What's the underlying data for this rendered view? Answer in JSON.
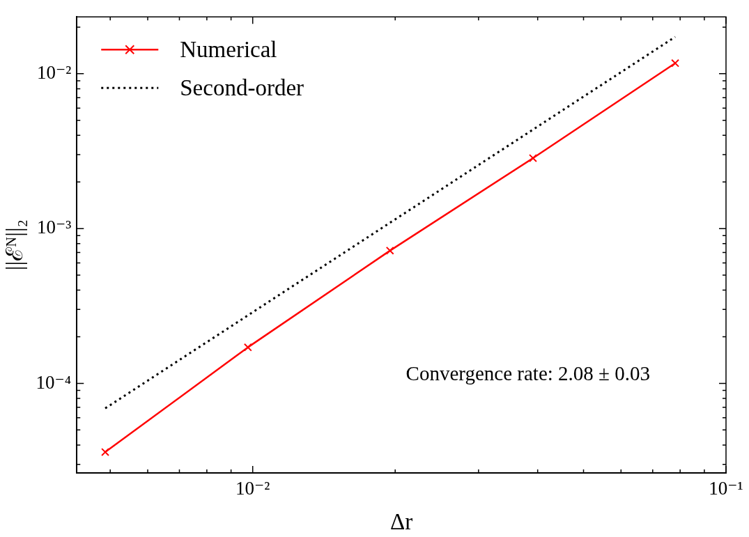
{
  "chart_data": {
    "type": "line",
    "xlabel": "Δr",
    "ylabel": "||ℰᴺ||₂",
    "log": "xy",
    "grid": false,
    "legend": "top left",
    "x": [
      0.00488,
      0.00977,
      0.0195,
      0.0391,
      0.0781
    ],
    "series": [
      {
        "name": "Numerical",
        "color": "#ff0000",
        "marker": "cross",
        "line_style": "solid",
        "values": [
          3.6e-05,
          0.000171,
          0.00072,
          0.00285,
          0.0117
        ]
      },
      {
        "name": "Second-order",
        "color": "#000000",
        "marker": "none",
        "line_style": "dotted",
        "x": [
          0.00488,
          0.0781
        ],
        "values": [
          6.9e-05,
          0.0173
        ]
      }
    ],
    "xlim": [
      0.00425,
      0.1
    ],
    "xticks": [
      {
        "value": 0.005,
        "label": null
      },
      {
        "value": 0.006,
        "label": null
      },
      {
        "value": 0.007,
        "label": null
      },
      {
        "value": 0.008,
        "label": null
      },
      {
        "value": 0.009,
        "label": null
      },
      {
        "value": 0.01,
        "label": "10⁻²"
      },
      {
        "value": 0.02,
        "label": null
      },
      {
        "value": 0.03,
        "label": null
      },
      {
        "value": 0.04,
        "label": null
      },
      {
        "value": 0.05,
        "label": null
      },
      {
        "value": 0.06,
        "label": null
      },
      {
        "value": 0.07,
        "label": null
      },
      {
        "value": 0.08,
        "label": null
      },
      {
        "value": 0.09,
        "label": null
      },
      {
        "value": 0.1,
        "label": "10⁻¹"
      }
    ],
    "ylim": [
      2.64e-05,
      0.0233
    ],
    "yticks": [
      {
        "value": 3e-05,
        "label": null
      },
      {
        "value": 4e-05,
        "label": null
      },
      {
        "value": 5e-05,
        "label": null
      },
      {
        "value": 6e-05,
        "label": null
      },
      {
        "value": 7e-05,
        "label": null
      },
      {
        "value": 8e-05,
        "label": null
      },
      {
        "value": 9e-05,
        "label": null
      },
      {
        "value": 0.0001,
        "label": "10⁻⁴"
      },
      {
        "value": 0.0002,
        "label": null
      },
      {
        "value": 0.0003,
        "label": null
      },
      {
        "value": 0.0004,
        "label": null
      },
      {
        "value": 0.0005,
        "label": null
      },
      {
        "value": 0.0006,
        "label": null
      },
      {
        "value": 0.0007,
        "label": null
      },
      {
        "value": 0.0008,
        "label": null
      },
      {
        "value": 0.0009,
        "label": null
      },
      {
        "value": 0.001,
        "label": "10⁻³"
      },
      {
        "value": 0.002,
        "label": null
      },
      {
        "value": 0.003,
        "label": null
      },
      {
        "value": 0.004,
        "label": null
      },
      {
        "value": 0.005,
        "label": null
      },
      {
        "value": 0.006,
        "label": null
      },
      {
        "value": 0.007,
        "label": null
      },
      {
        "value": 0.008,
        "label": null
      },
      {
        "value": 0.009,
        "label": null
      },
      {
        "value": 0.01,
        "label": "10⁻²"
      },
      {
        "value": 0.02,
        "label": null
      }
    ],
    "annotations": [
      "Convergence rate: 2.08 ± 0.03"
    ]
  }
}
